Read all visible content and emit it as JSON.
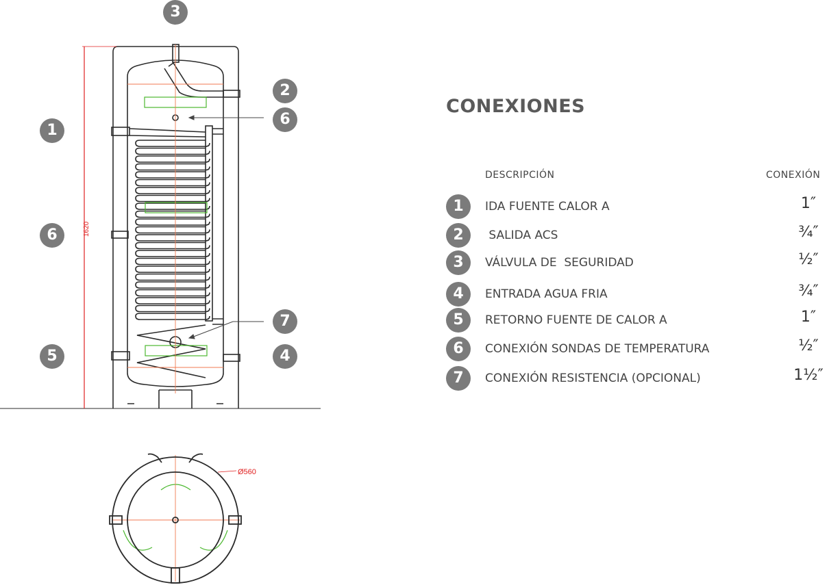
{
  "diagram": {
    "dimension_height": "1620",
    "dimension_diameter": "Ø560",
    "callouts": [
      "3",
      "2",
      "6",
      "1",
      "6",
      "5",
      "7",
      "4"
    ],
    "colors": {
      "outline": "#2b2b2b",
      "centerline": "#f07a50",
      "dimension": "#e02020",
      "bracket": "#4cb830",
      "badge": "#7b7b7b"
    }
  },
  "table": {
    "title": "CONEXIONES",
    "header_description": "DESCRIPCIÓN",
    "header_connection": "CONEXIÓN",
    "rows": [
      {
        "num": "1",
        "description": "IDA FUENTE CALOR A",
        "connection": "1″"
      },
      {
        "num": "2",
        "description": " SALIDA ACS",
        "connection": "¾″"
      },
      {
        "num": "3",
        "description": "VÁLVULA DE  SEGURIDAD",
        "connection": "½″"
      },
      {
        "num": "4",
        "description": "ENTRADA AGUA FRIA",
        "connection": "¾″"
      },
      {
        "num": "5",
        "description": "RETORNO FUENTE DE CALOR A",
        "connection": "1″"
      },
      {
        "num": "6",
        "description": "CONEXIÓN SONDAS DE TEMPERATURA",
        "connection": "½″"
      },
      {
        "num": "7",
        "description": "CONEXIÓN RESISTENCIA (OPCIONAL)",
        "connection": "1½″"
      }
    ]
  }
}
